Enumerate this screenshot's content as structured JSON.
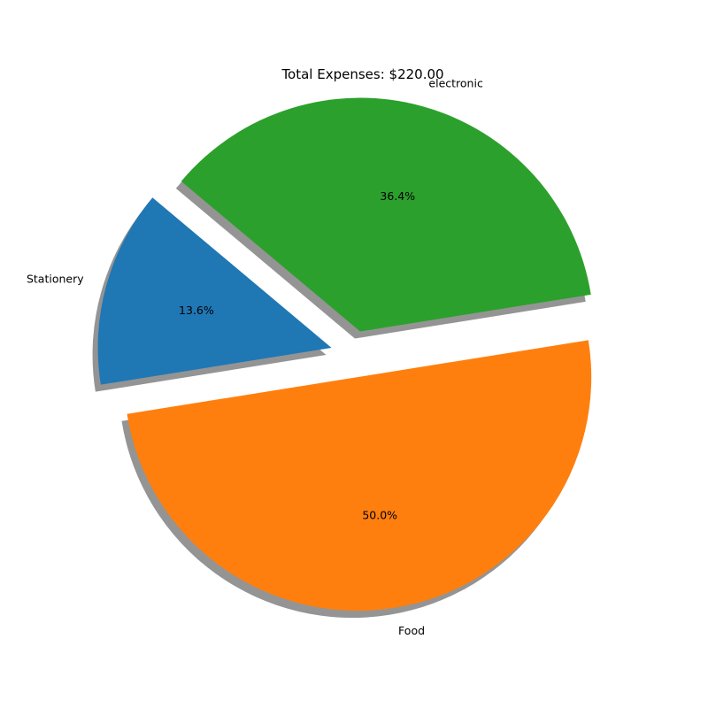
{
  "chart_data": {
    "type": "pie",
    "title": "Total Expenses: $220.00",
    "slices": [
      {
        "label": "Stationery",
        "value": 30,
        "pct_label": "13.6%",
        "color": "#1f77b4",
        "explode": 0.1
      },
      {
        "label": "Food",
        "value": 110,
        "pct_label": "50.0%",
        "color": "#ff7f0e",
        "explode": 0.1
      },
      {
        "label": "electronic",
        "value": 80,
        "pct_label": "36.4%",
        "color": "#2ca02c",
        "explode": 0.1
      }
    ],
    "start_angle_deg": 140,
    "shadow": true,
    "legend": "none"
  }
}
